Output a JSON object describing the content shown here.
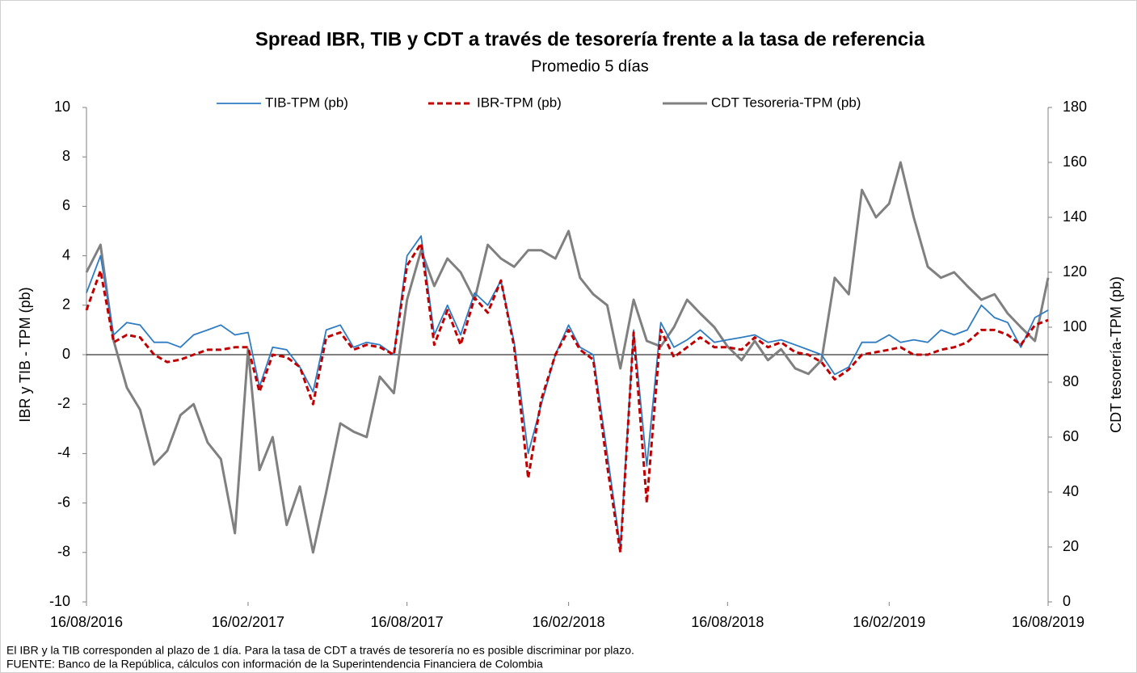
{
  "chart_data": {
    "type": "line",
    "title": "Spread IBR, TIB y CDT a través de tesorería frente a la tasa de referencia",
    "subtitle": "Promedio 5 días",
    "y_label": "IBR y TIB - TPM (pb)",
    "y2_label": "CDT tesorería-TPM (pb)",
    "notes": [
      "El IBR y la TIB corresponden al plazo de 1 día. Para la tasa de CDT a través de tesorería no es posible discriminar por plazo.",
      "FUENTE:  Banco de la República, cálculos con información de la Superintendencia Financiera de Colombia"
    ],
    "x": [
      "16/08/2016",
      "01/09/2016",
      "16/09/2016",
      "01/10/2016",
      "16/10/2016",
      "01/11/2016",
      "16/11/2016",
      "01/12/2016",
      "16/12/2016",
      "01/01/2017",
      "16/01/2017",
      "01/02/2017",
      "16/02/2017",
      "01/03/2017",
      "16/03/2017",
      "01/04/2017",
      "16/04/2017",
      "01/05/2017",
      "16/05/2017",
      "01/06/2017",
      "16/06/2017",
      "01/07/2017",
      "16/07/2017",
      "01/08/2017",
      "16/08/2017",
      "01/09/2017",
      "16/09/2017",
      "01/10/2017",
      "16/10/2017",
      "01/11/2017",
      "16/11/2017",
      "01/12/2017",
      "16/12/2017",
      "01/01/2018",
      "16/01/2018",
      "01/02/2018",
      "16/02/2018",
      "01/03/2018",
      "16/03/2018",
      "01/04/2018",
      "16/04/2018",
      "01/05/2018",
      "16/05/2018",
      "01/06/2018",
      "16/06/2018",
      "01/07/2018",
      "16/07/2018",
      "01/08/2018",
      "16/08/2018",
      "01/09/2018",
      "16/09/2018",
      "01/10/2018",
      "16/10/2018",
      "01/11/2018",
      "16/11/2018",
      "01/12/2018",
      "16/12/2018",
      "01/01/2019",
      "16/01/2019",
      "01/02/2019",
      "16/02/2019",
      "01/03/2019",
      "16/03/2019",
      "01/04/2019",
      "16/04/2019",
      "01/05/2019",
      "16/05/2019",
      "01/06/2019",
      "16/06/2019",
      "01/07/2019",
      "16/07/2019",
      "01/08/2019",
      "16/08/2019"
    ],
    "xlim": [
      "16/08/2016",
      "16/08/2019"
    ],
    "xticks": [
      "16/08/2016",
      "16/02/2017",
      "16/08/2017",
      "16/02/2018",
      "16/08/2018",
      "16/02/2019",
      "16/08/2019"
    ],
    "ylim": [
      -10,
      10
    ],
    "yticks": [
      -10,
      -8,
      -6,
      -4,
      -2,
      0,
      2,
      4,
      6,
      8,
      10
    ],
    "y2lim": [
      0,
      180
    ],
    "y2ticks": [
      0,
      20,
      40,
      60,
      80,
      100,
      120,
      140,
      160,
      180
    ],
    "legend": "top",
    "series": [
      {
        "name": "TIB-TPM (pb)",
        "color": "#2e7cc4",
        "values": [
          2.5,
          4.0,
          0.8,
          1.3,
          1.2,
          0.5,
          0.5,
          0.3,
          0.8,
          1.0,
          1.2,
          0.8,
          0.9,
          -1.3,
          0.3,
          0.2,
          -0.5,
          -1.5,
          1.0,
          1.2,
          0.3,
          0.5,
          0.4,
          0.0,
          4.0,
          4.8,
          0.8,
          2.0,
          0.8,
          2.5,
          2.0,
          3.0,
          0.5,
          -4.0,
          -2.0,
          0.0,
          1.2,
          0.3,
          0.0,
          -4.0,
          -7.8,
          1.0,
          -4.5,
          1.3,
          0.3,
          0.6,
          1.0,
          0.5,
          0.6,
          0.7,
          0.8,
          0.5,
          0.6,
          0.4,
          0.2,
          0.0,
          -0.8,
          -0.5,
          0.5,
          0.5,
          0.8,
          0.5,
          0.6,
          0.5,
          1.0,
          0.8,
          1.0,
          2.0,
          1.5,
          1.3,
          0.3,
          1.5,
          1.8
        ]
      },
      {
        "name": "IBR-TPM (pb)",
        "color": "#c00000",
        "dashed": true,
        "values": [
          1.8,
          3.4,
          0.5,
          0.8,
          0.7,
          0.0,
          -0.3,
          -0.2,
          0.0,
          0.2,
          0.2,
          0.3,
          0.3,
          -1.5,
          0.0,
          -0.1,
          -0.5,
          -2.0,
          0.7,
          0.9,
          0.2,
          0.4,
          0.3,
          0.0,
          3.6,
          4.5,
          0.4,
          1.8,
          0.4,
          2.3,
          1.7,
          3.0,
          0.3,
          -5.0,
          -1.8,
          0.0,
          1.0,
          0.2,
          -0.2,
          -4.5,
          -8.0,
          0.9,
          -6.0,
          1.0,
          -0.1,
          0.3,
          0.7,
          0.3,
          0.3,
          0.2,
          0.7,
          0.3,
          0.5,
          0.1,
          0.0,
          -0.3,
          -1.0,
          -0.6,
          0.0,
          0.1,
          0.2,
          0.3,
          0.0,
          0.0,
          0.2,
          0.3,
          0.5,
          1.0,
          1.0,
          0.8,
          0.4,
          1.2,
          1.4
        ]
      },
      {
        "name": "CDT Tesoreria-TPM (pb)",
        "color": "#808080",
        "axis": "y2",
        "values": [
          120,
          130,
          95,
          78,
          70,
          50,
          55,
          68,
          72,
          58,
          52,
          25,
          92,
          48,
          60,
          28,
          42,
          18,
          40,
          65,
          62,
          60,
          82,
          76,
          110,
          128,
          115,
          125,
          120,
          110,
          130,
          125,
          122,
          128,
          128,
          125,
          135,
          118,
          112,
          108,
          85,
          110,
          95,
          93,
          100,
          110,
          105,
          100,
          93,
          88,
          95,
          88,
          92,
          85,
          83,
          88,
          118,
          112,
          150,
          140,
          145,
          160,
          140,
          122,
          118,
          120,
          115,
          110,
          112,
          105,
          100,
          95,
          118
        ]
      }
    ]
  }
}
